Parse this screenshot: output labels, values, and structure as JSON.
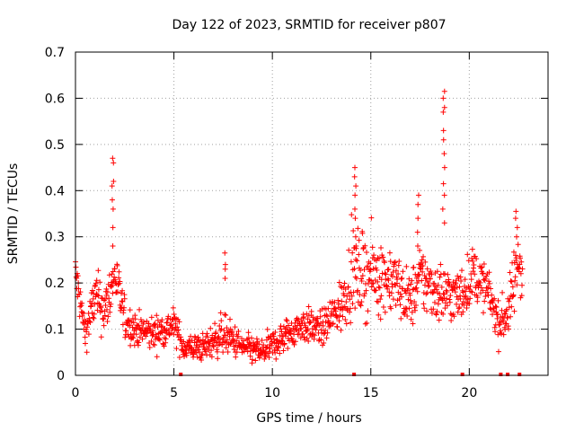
{
  "chart_data": {
    "type": "scatter",
    "title": "Day 122 of 2023, SRMTID for receiver p807",
    "xlabel": "GPS time / hours",
    "ylabel": "SRMTID / TECUs",
    "xlim": [
      0,
      24
    ],
    "ylim": [
      0,
      0.7
    ],
    "xticks": [
      "0",
      "5",
      "10",
      "15",
      "20"
    ],
    "yticks": [
      "0",
      "0.1",
      "0.2",
      "0.3",
      "0.4",
      "0.5",
      "0.6",
      "0.7"
    ],
    "grid": true,
    "marker": "+",
    "color": "#ff0000",
    "envelope": [
      {
        "x": 0.0,
        "y": 0.22,
        "s": 0.035
      },
      {
        "x": 0.5,
        "y": 0.09,
        "s": 0.025
      },
      {
        "x": 1.0,
        "y": 0.17,
        "s": 0.04
      },
      {
        "x": 1.5,
        "y": 0.14,
        "s": 0.04
      },
      {
        "x": 2.0,
        "y": 0.22,
        "s": 0.04
      },
      {
        "x": 2.5,
        "y": 0.12,
        "s": 0.03
      },
      {
        "x": 3.0,
        "y": 0.1,
        "s": 0.025
      },
      {
        "x": 4.0,
        "y": 0.09,
        "s": 0.025
      },
      {
        "x": 5.0,
        "y": 0.11,
        "s": 0.025
      },
      {
        "x": 5.5,
        "y": 0.06,
        "s": 0.02
      },
      {
        "x": 6.5,
        "y": 0.06,
        "s": 0.02
      },
      {
        "x": 7.5,
        "y": 0.09,
        "s": 0.03
      },
      {
        "x": 8.5,
        "y": 0.06,
        "s": 0.02
      },
      {
        "x": 9.5,
        "y": 0.05,
        "s": 0.02
      },
      {
        "x": 10.5,
        "y": 0.08,
        "s": 0.025
      },
      {
        "x": 11.5,
        "y": 0.11,
        "s": 0.025
      },
      {
        "x": 12.5,
        "y": 0.1,
        "s": 0.025
      },
      {
        "x": 13.5,
        "y": 0.15,
        "s": 0.04
      },
      {
        "x": 14.0,
        "y": 0.22,
        "s": 0.06
      },
      {
        "x": 15.0,
        "y": 0.22,
        "s": 0.06
      },
      {
        "x": 16.0,
        "y": 0.21,
        "s": 0.05
      },
      {
        "x": 17.0,
        "y": 0.16,
        "s": 0.04
      },
      {
        "x": 17.5,
        "y": 0.21,
        "s": 0.05
      },
      {
        "x": 18.5,
        "y": 0.18,
        "s": 0.045
      },
      {
        "x": 19.5,
        "y": 0.17,
        "s": 0.04
      },
      {
        "x": 20.2,
        "y": 0.22,
        "s": 0.04
      },
      {
        "x": 21.0,
        "y": 0.18,
        "s": 0.03
      },
      {
        "x": 21.5,
        "y": 0.11,
        "s": 0.03
      },
      {
        "x": 22.0,
        "y": 0.14,
        "s": 0.04
      },
      {
        "x": 22.5,
        "y": 0.25,
        "s": 0.05
      },
      {
        "x": 22.7,
        "y": 0.23,
        "s": 0.04
      }
    ],
    "spikes": [
      {
        "x": 1.9,
        "values": [
          0.47,
          0.46,
          0.42,
          0.41,
          0.38,
          0.36,
          0.32,
          0.28
        ]
      },
      {
        "x": 7.6,
        "values": [
          0.265,
          0.24,
          0.23,
          0.21
        ]
      },
      {
        "x": 14.2,
        "values": [
          0.45,
          0.43,
          0.41,
          0.39,
          0.36,
          0.34,
          0.3,
          0.28
        ]
      },
      {
        "x": 17.4,
        "values": [
          0.39,
          0.37,
          0.34,
          0.31,
          0.28
        ]
      },
      {
        "x": 18.7,
        "values": [
          0.615,
          0.6,
          0.58,
          0.57,
          0.53,
          0.51,
          0.48,
          0.45,
          0.415,
          0.39,
          0.36,
          0.33
        ]
      },
      {
        "x": 22.4,
        "values": [
          0.355,
          0.34,
          0.32,
          0.3
        ]
      }
    ],
    "zero_points": [
      5.35,
      14.15,
      19.65,
      21.6,
      21.95,
      22.55
    ]
  }
}
